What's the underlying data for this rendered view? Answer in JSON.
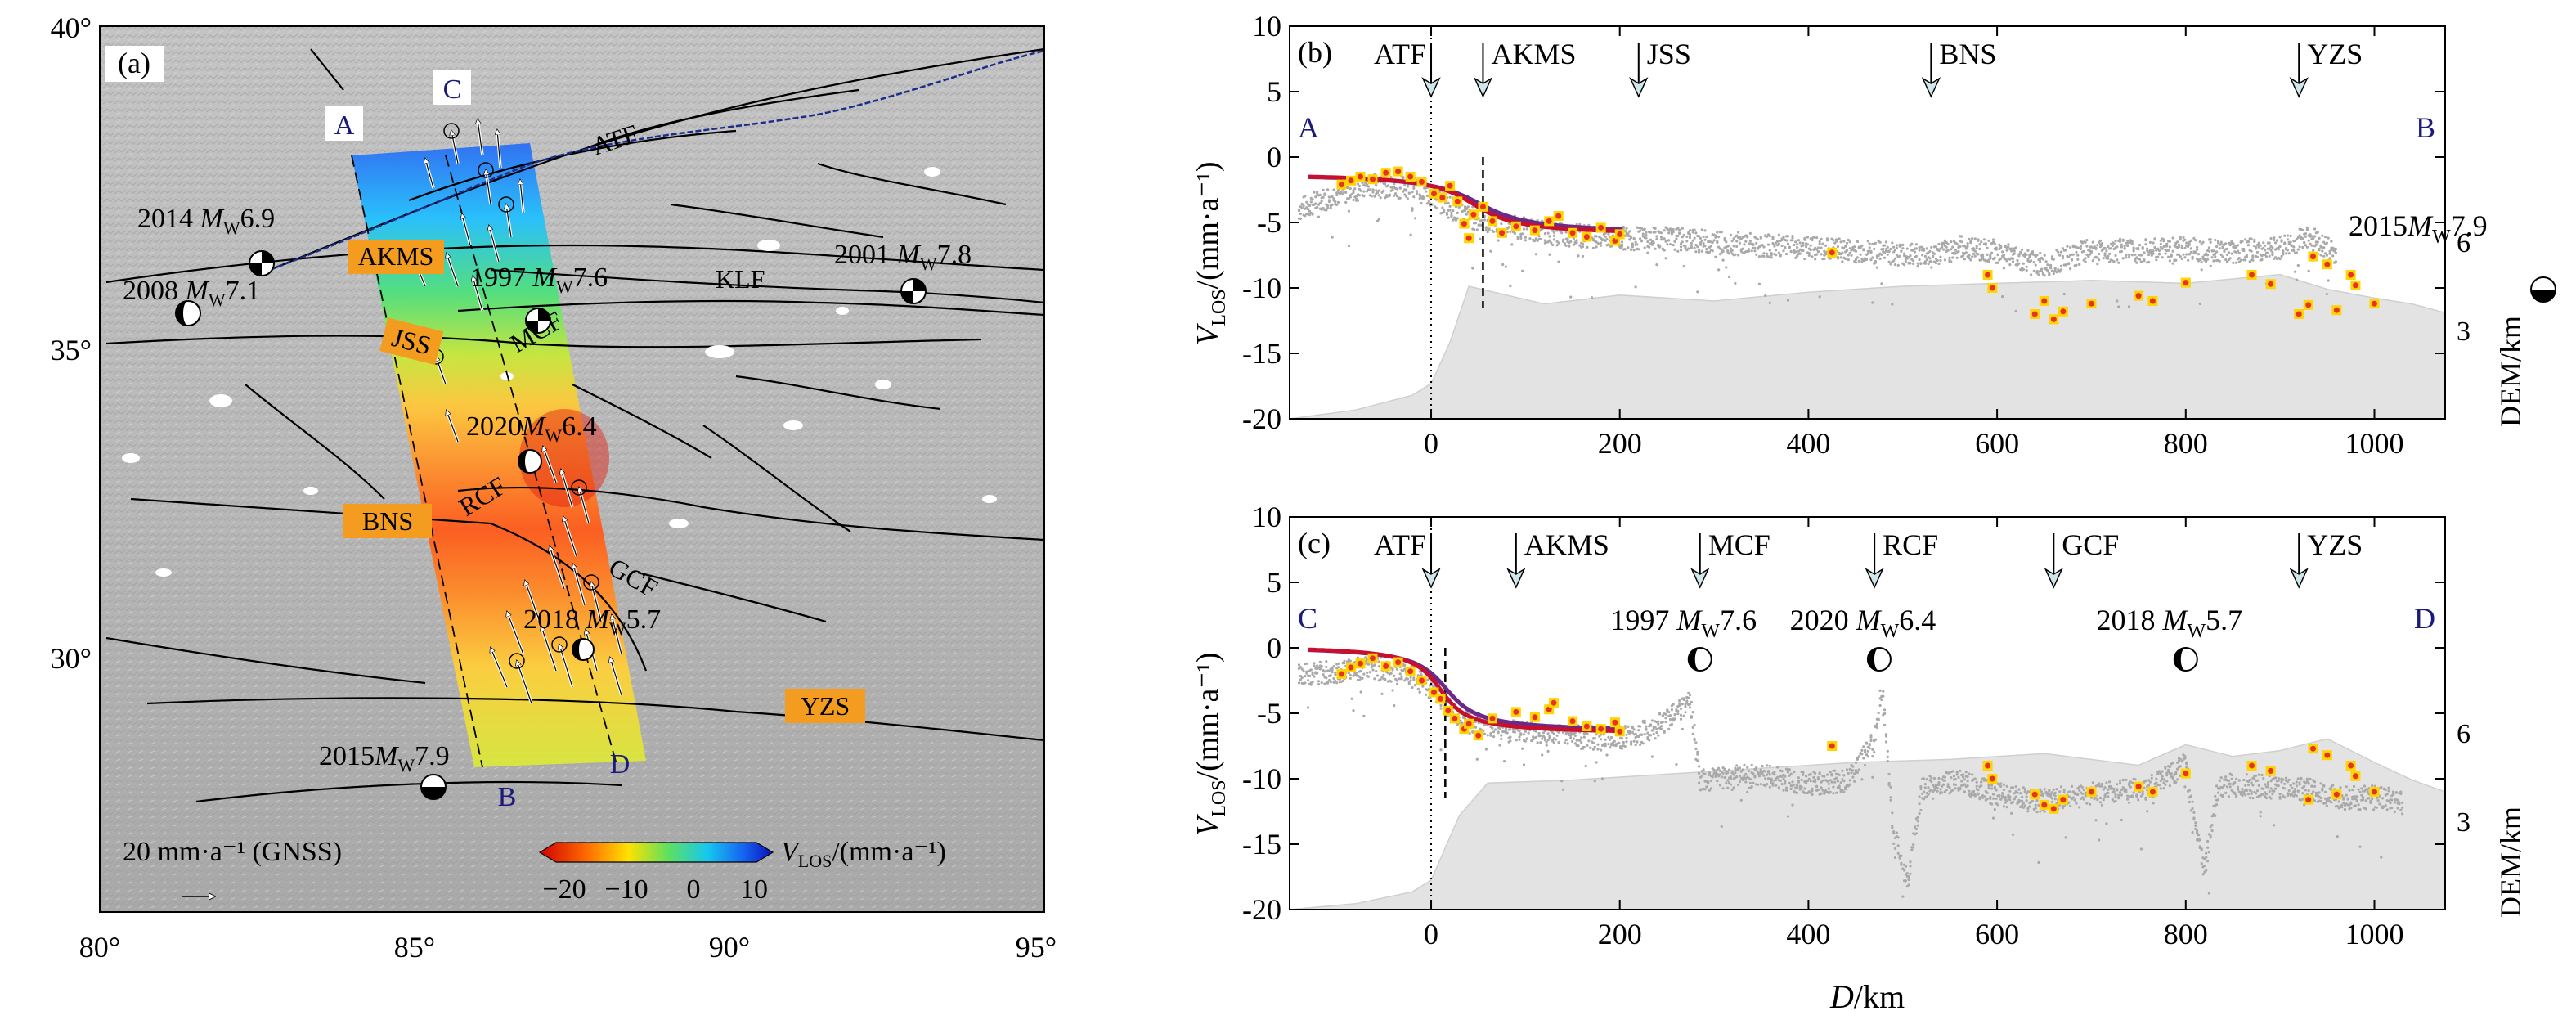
{
  "map": {
    "panel_label": "(a)",
    "x_ticks": [
      "80°",
      "85°",
      "90°",
      "95°"
    ],
    "y_ticks": [
      "40°",
      "35°",
      "30°"
    ],
    "x_range": [
      80,
      95
    ],
    "y_range": [
      26,
      40
    ],
    "profile_labels": {
      "A": "A",
      "B": "B",
      "C": "C",
      "D": "D"
    },
    "fault_labels": {
      "ATF": "ATF",
      "KLF": "KLF",
      "MCF": "MCF",
      "RCF": "RCF",
      "GCF": "GCF"
    },
    "suture_labels": {
      "AKMS": "AKMS",
      "JSS": "JSS",
      "BNS": "BNS",
      "YZS": "YZS"
    },
    "quakes": [
      {
        "year": "2014",
        "mw": "6.9"
      },
      {
        "year": "2008",
        "mw": "7.1"
      },
      {
        "year": "1997",
        "mw": "7.6"
      },
      {
        "year": "2001",
        "mw": "7.8"
      },
      {
        "year": "2020",
        "mw": "6.4"
      },
      {
        "year": "2018",
        "mw": "5.7"
      },
      {
        "year": "2015",
        "mw": "7.9"
      }
    ],
    "gnss_scale_label": "20 mm·a⁻¹ (GNSS)",
    "colorbar": {
      "label_prefix": "V",
      "label_sub": "LOS",
      "label_unit": "/(mm·a⁻¹)",
      "ticks": [
        "−20",
        "−10",
        "0",
        "10"
      ]
    },
    "colors": {
      "background": "#c9c9c9",
      "fault": "#000000",
      "atf_line": "#1c2c8a",
      "suture_box": "#f39c1f",
      "profile_letter": "#1a1a7a"
    }
  },
  "chart_data": [
    {
      "type": "scatter",
      "panel": "(b)",
      "profile": [
        "A",
        "B"
      ],
      "xlim": [
        -150,
        1075
      ],
      "ylim": [
        -20,
        10
      ],
      "x_ticks": [
        0,
        200,
        400,
        600,
        800,
        1000
      ],
      "y_ticks": [
        10,
        5,
        0,
        -5,
        -10,
        -15,
        -20
      ],
      "ylabel_main": "V",
      "ylabel_sub": "LOS",
      "ylabel_unit": "/(mm·a⁻¹)",
      "right_ylabel": "DEM/km",
      "right_ticks": [
        "6",
        "3"
      ],
      "features": [
        {
          "name": "ATF",
          "x": 0
        },
        {
          "name": "AKMS",
          "x": 55
        },
        {
          "name": "JSS",
          "x": 220
        },
        {
          "name": "BNS",
          "x": 530
        },
        {
          "name": "YZS",
          "x": 920
        }
      ],
      "quake_labels": [
        {
          "year": "2015",
          "mw": "7.9"
        }
      ],
      "fit_curve": {
        "far_field": -1.2,
        "offset": -4.8,
        "center": 45,
        "width": 35,
        "x_range": [
          -130,
          205
        ]
      },
      "dashed_x": 55,
      "gnss_points": [
        [
          -95,
          -2.1
        ],
        [
          -85,
          -1.8
        ],
        [
          -75,
          -1.5
        ],
        [
          -62,
          -1.7
        ],
        [
          -48,
          -1.2
        ],
        [
          -35,
          -1.1
        ],
        [
          -22,
          -1.5
        ],
        [
          -10,
          -1.9
        ],
        [
          3,
          -2.8
        ],
        [
          12,
          -3.1
        ],
        [
          20,
          -2.2
        ],
        [
          28,
          -3.4
        ],
        [
          35,
          -5.1
        ],
        [
          40,
          -6.2
        ],
        [
          45,
          -4.4
        ],
        [
          55,
          -3.8
        ],
        [
          65,
          -4.9
        ],
        [
          75,
          -5.8
        ],
        [
          90,
          -5.3
        ],
        [
          110,
          -5.6
        ],
        [
          125,
          -4.9
        ],
        [
          135,
          -4.5
        ],
        [
          150,
          -5.8
        ],
        [
          165,
          -6.1
        ],
        [
          180,
          -5.4
        ],
        [
          195,
          -6.4
        ],
        [
          200,
          -5.9
        ],
        [
          425,
          -7.3
        ],
        [
          590,
          -9.0
        ],
        [
          595,
          -10.0
        ],
        [
          640,
          -12.0
        ],
        [
          650,
          -11.0
        ],
        [
          660,
          -12.4
        ],
        [
          670,
          -11.8
        ],
        [
          700,
          -11.2
        ],
        [
          750,
          -10.6
        ],
        [
          765,
          -11.0
        ],
        [
          800,
          -9.6
        ],
        [
          870,
          -9.0
        ],
        [
          890,
          -9.7
        ],
        [
          920,
          -12.0
        ],
        [
          930,
          -11.3
        ],
        [
          935,
          -7.6
        ],
        [
          950,
          -8.2
        ],
        [
          960,
          -11.7
        ],
        [
          975,
          -9.0
        ],
        [
          980,
          -9.8
        ],
        [
          1000,
          -11.2
        ]
      ],
      "insar_profile": [
        [
          -140,
          -4.0
        ],
        [
          -100,
          -2.8
        ],
        [
          -60,
          -2.2
        ],
        [
          -20,
          -2.3
        ],
        [
          0,
          -3.0
        ],
        [
          40,
          -4.6
        ],
        [
          80,
          -5.2
        ],
        [
          120,
          -5.8
        ],
        [
          160,
          -6.0
        ],
        [
          200,
          -6.2
        ],
        [
          260,
          -6.3
        ],
        [
          320,
          -6.6
        ],
        [
          380,
          -6.9
        ],
        [
          430,
          -7.1
        ],
        [
          480,
          -7.3
        ],
        [
          530,
          -7.6
        ],
        [
          560,
          -6.9
        ],
        [
          600,
          -7.2
        ],
        [
          650,
          -8.3
        ],
        [
          700,
          -7.1
        ],
        [
          750,
          -7.2
        ],
        [
          800,
          -7.0
        ],
        [
          850,
          -7.2
        ],
        [
          900,
          -7.0
        ],
        [
          930,
          -6.0
        ],
        [
          960,
          -7.5
        ]
      ],
      "dem_profile": [
        [
          -150,
          0.0
        ],
        [
          -80,
          0.3
        ],
        [
          -20,
          0.8
        ],
        [
          0,
          1.2
        ],
        [
          20,
          2.6
        ],
        [
          40,
          4.5
        ],
        [
          120,
          3.9
        ],
        [
          200,
          4.2
        ],
        [
          300,
          4.0
        ],
        [
          400,
          4.3
        ],
        [
          500,
          4.5
        ],
        [
          600,
          4.6
        ],
        [
          700,
          4.7
        ],
        [
          800,
          4.6
        ],
        [
          900,
          4.9
        ],
        [
          950,
          4.4
        ],
        [
          1000,
          4.1
        ],
        [
          1040,
          3.9
        ],
        [
          1075,
          3.6
        ]
      ]
    },
    {
      "type": "scatter",
      "panel": "(c)",
      "profile": [
        "C",
        "D"
      ],
      "xlim": [
        -150,
        1075
      ],
      "ylim": [
        -20,
        10
      ],
      "x_ticks": [
        0,
        200,
        400,
        600,
        800,
        1000
      ],
      "y_ticks": [
        10,
        5,
        0,
        -5,
        -10,
        -15,
        -20
      ],
      "xlabel_main": "D",
      "xlabel_unit": "/km",
      "ylabel_main": "V",
      "ylabel_sub": "LOS",
      "ylabel_unit": "/(mm·a⁻¹)",
      "right_ylabel": "DEM/km",
      "right_ticks": [
        "6",
        "3"
      ],
      "features": [
        {
          "name": "ATF",
          "x": 0
        },
        {
          "name": "AKMS",
          "x": 90
        },
        {
          "name": "MCF",
          "x": 285
        },
        {
          "name": "RCF",
          "x": 470
        },
        {
          "name": "GCF",
          "x": 660
        },
        {
          "name": "YZS",
          "x": 920
        }
      ],
      "quake_labels": [
        {
          "year": "1997",
          "mw": "7.6",
          "x": 285
        },
        {
          "year": "2020",
          "mw": "6.4",
          "x": 475
        },
        {
          "year": "2018",
          "mw": "5.7",
          "x": 800
        }
      ],
      "fit_curve": {
        "far_field": 0.2,
        "offset": -6.8,
        "center": 10,
        "width": 22,
        "x_range": [
          -130,
          205
        ]
      },
      "dashed_x": 15,
      "gnss_points": [
        [
          -95,
          -2.0
        ],
        [
          -85,
          -1.5
        ],
        [
          -75,
          -1.2
        ],
        [
          -62,
          -0.8
        ],
        [
          -48,
          -1.4
        ],
        [
          -35,
          -1.1
        ],
        [
          -22,
          -1.8
        ],
        [
          -10,
          -2.5
        ],
        [
          3,
          -3.4
        ],
        [
          10,
          -3.9
        ],
        [
          18,
          -4.8
        ],
        [
          25,
          -5.4
        ],
        [
          35,
          -6.2
        ],
        [
          40,
          -5.8
        ],
        [
          50,
          -6.7
        ],
        [
          65,
          -5.4
        ],
        [
          90,
          -4.9
        ],
        [
          110,
          -5.3
        ],
        [
          125,
          -4.7
        ],
        [
          130,
          -4.2
        ],
        [
          150,
          -5.6
        ],
        [
          165,
          -6.0
        ],
        [
          180,
          -6.2
        ],
        [
          195,
          -5.7
        ],
        [
          200,
          -6.4
        ],
        [
          425,
          -7.5
        ],
        [
          590,
          -9.0
        ],
        [
          595,
          -10.0
        ],
        [
          640,
          -11.2
        ],
        [
          650,
          -12.0
        ],
        [
          660,
          -12.3
        ],
        [
          670,
          -11.6
        ],
        [
          700,
          -11.0
        ],
        [
          750,
          -10.6
        ],
        [
          765,
          -11.0
        ],
        [
          800,
          -9.6
        ],
        [
          870,
          -9.0
        ],
        [
          890,
          -9.4
        ],
        [
          930,
          -11.6
        ],
        [
          935,
          -7.7
        ],
        [
          950,
          -8.2
        ],
        [
          960,
          -11.2
        ],
        [
          975,
          -9.0
        ],
        [
          980,
          -9.8
        ],
        [
          1000,
          -11.0
        ]
      ],
      "insar_profile": [
        [
          -140,
          -2.0
        ],
        [
          -100,
          -1.8
        ],
        [
          -60,
          -1.5
        ],
        [
          -20,
          -2.2
        ],
        [
          0,
          -3.0
        ],
        [
          30,
          -5.5
        ],
        [
          80,
          -6.3
        ],
        [
          140,
          -6.8
        ],
        [
          200,
          -6.9
        ],
        [
          230,
          -6.4
        ],
        [
          260,
          -5.0
        ],
        [
          275,
          -4.2
        ],
        [
          285,
          -10.2
        ],
        [
          320,
          -9.8
        ],
        [
          360,
          -9.9
        ],
        [
          400,
          -10.4
        ],
        [
          440,
          -10.2
        ],
        [
          470,
          -7.2
        ],
        [
          478,
          -3.0
        ],
        [
          490,
          -14.0
        ],
        [
          505,
          -18.0
        ],
        [
          520,
          -10.8
        ],
        [
          560,
          -10.2
        ],
        [
          600,
          -11.2
        ],
        [
          640,
          -11.7
        ],
        [
          700,
          -11.2
        ],
        [
          760,
          -10.8
        ],
        [
          800,
          -8.9
        ],
        [
          810,
          -14.0
        ],
        [
          820,
          -17.0
        ],
        [
          835,
          -10.5
        ],
        [
          880,
          -10.6
        ],
        [
          930,
          -10.9
        ],
        [
          970,
          -11.5
        ],
        [
          1010,
          -11.4
        ],
        [
          1030,
          -11.9
        ]
      ],
      "dem_profile": [
        [
          -150,
          0.0
        ],
        [
          -80,
          0.2
        ],
        [
          -20,
          0.6
        ],
        [
          0,
          1.0
        ],
        [
          30,
          3.2
        ],
        [
          60,
          4.3
        ],
        [
          150,
          4.4
        ],
        [
          250,
          4.6
        ],
        [
          350,
          4.8
        ],
        [
          450,
          5.0
        ],
        [
          550,
          5.1
        ],
        [
          650,
          5.3
        ],
        [
          750,
          4.9
        ],
        [
          800,
          5.6
        ],
        [
          850,
          5.2
        ],
        [
          900,
          5.4
        ],
        [
          950,
          5.8
        ],
        [
          1000,
          5.0
        ],
        [
          1040,
          4.4
        ],
        [
          1075,
          4.0
        ]
      ]
    }
  ]
}
